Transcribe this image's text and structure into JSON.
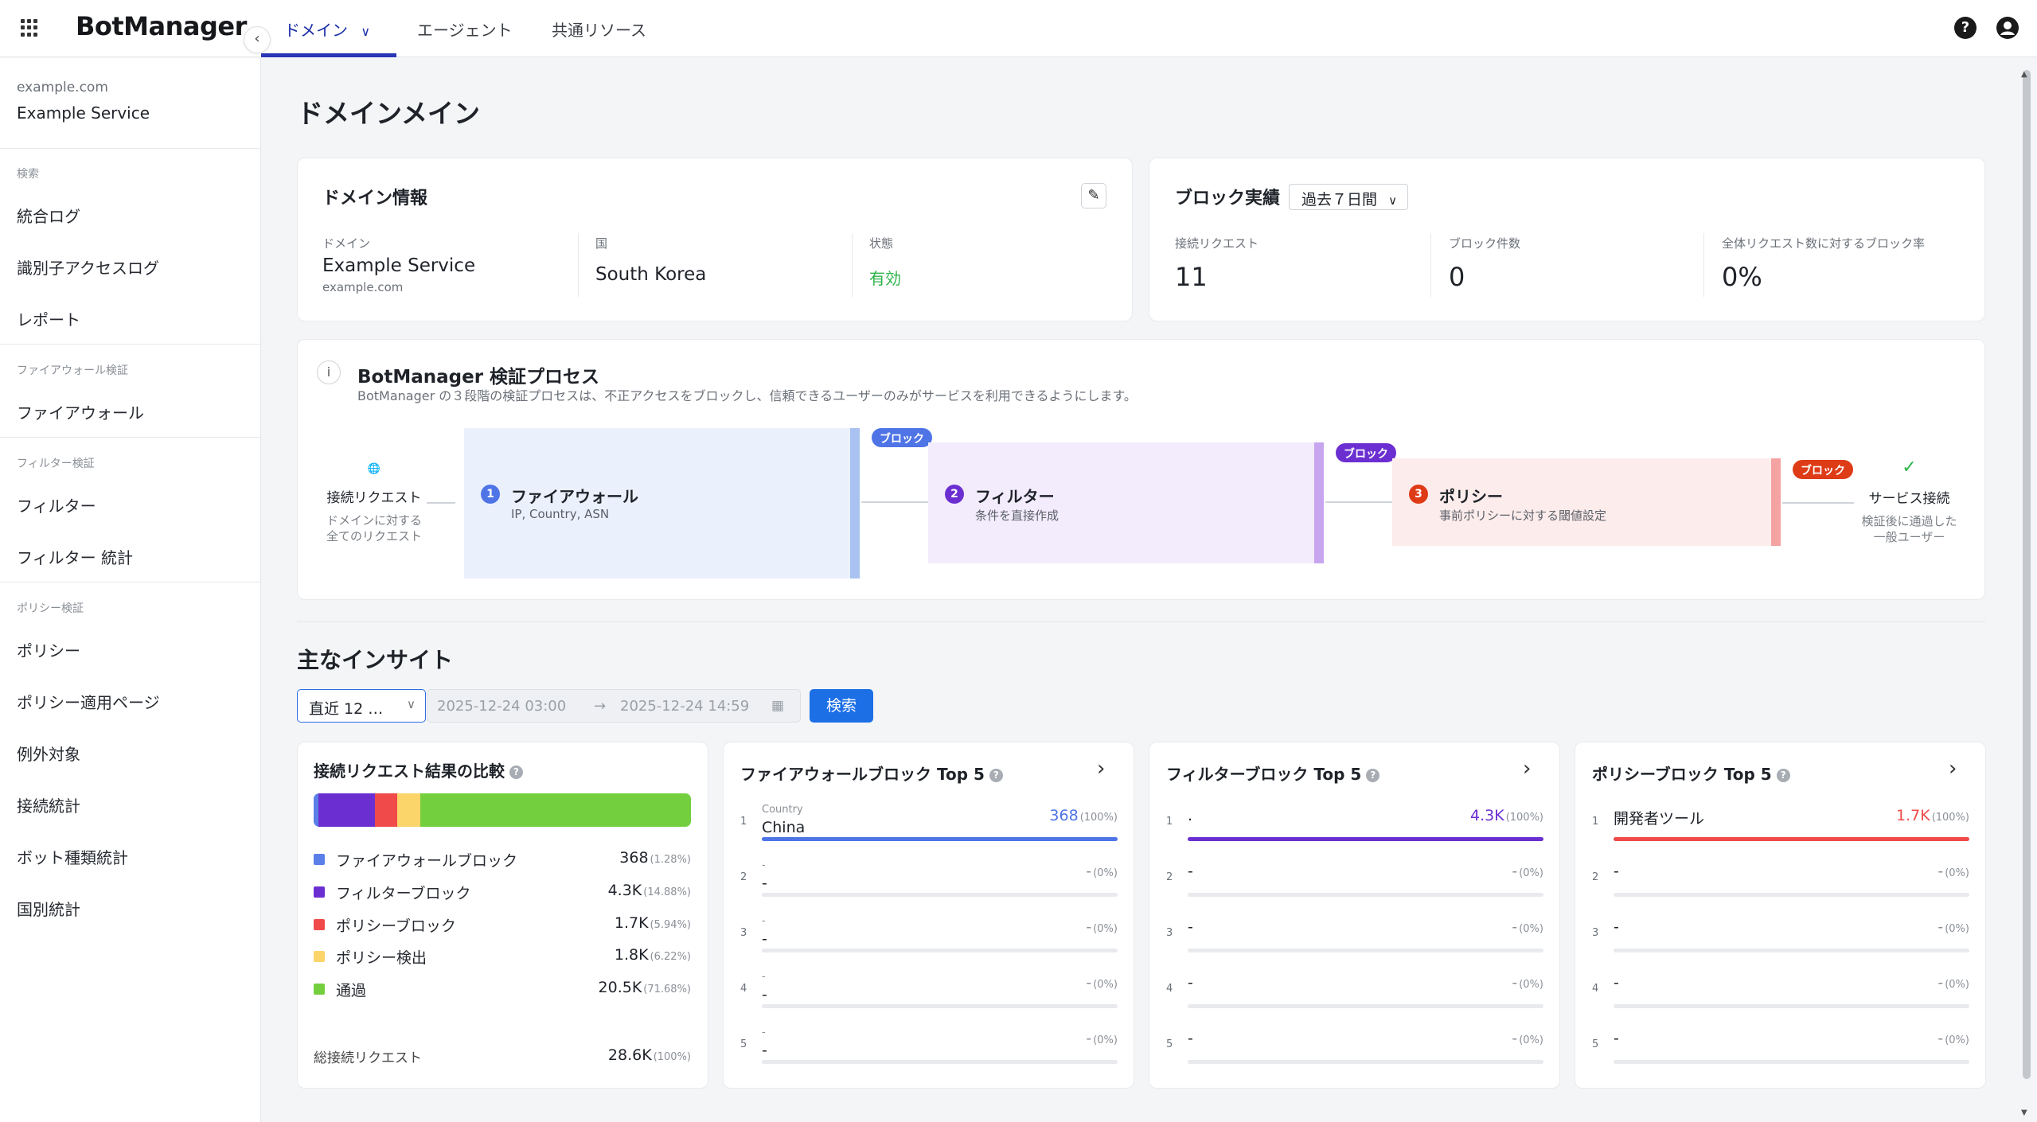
{
  "header": {
    "logo": "BotManager",
    "tabs": [
      "ドメイン",
      "エージェント",
      "共通リソース"
    ]
  },
  "sidebar": {
    "domain": "example.com",
    "service": "Example Service",
    "sections": [
      {
        "title": "検索",
        "items": [
          "統合ログ",
          "識別子アクセスログ",
          "レポート"
        ]
      },
      {
        "title": "ファイアウォール検証",
        "items": [
          "ファイアウォール"
        ]
      },
      {
        "title": "フィルター検証",
        "items": [
          "フィルター",
          "フィルター 統計"
        ]
      },
      {
        "title": "ポリシー検証",
        "items": [
          "ポリシー",
          "ポリシー適用ページ",
          "例外対象",
          "接続統計",
          "ボット種類統計",
          "国別統計"
        ]
      }
    ]
  },
  "page_title": "ドメインメイン",
  "domain_info": {
    "title": "ドメイン情報",
    "domain_label": "ドメイン",
    "domain_value": "Example Service",
    "domain_sub": "example.com",
    "country_label": "国",
    "country_value": "South Korea",
    "status_label": "状態",
    "status_value": "有効"
  },
  "block_results": {
    "title": "ブロック実績",
    "period": "過去７日間",
    "metrics": [
      {
        "label": "接続リクエスト",
        "value": "11"
      },
      {
        "label": "ブロック件数",
        "value": "0"
      },
      {
        "label": "全体リクエスト数に対するブロック率",
        "value": "0%"
      }
    ]
  },
  "process": {
    "title": "BotManager 検証プロセス",
    "description": "BotManager の３段階の検証プロセスは、不正アクセスをブロックし、信頼できるユーザーのみがサービスを利用できるようにします。",
    "start_label": "接続リクエスト",
    "start_sub": [
      "ドメインに対する",
      "全てのリクエスト"
    ],
    "block_tag": "ブロック",
    "stages": [
      {
        "num": "1",
        "name": "ファイアウォール",
        "sub": "IP, Country, ASN"
      },
      {
        "num": "2",
        "name": "フィルター",
        "sub": "条件を直接作成"
      },
      {
        "num": "3",
        "name": "ポリシー",
        "sub": "事前ポリシーに対する閾値設定"
      }
    ],
    "end_label": "サービス接続",
    "end_sub": [
      "検証後に通過した",
      "一般ユーザー"
    ]
  },
  "insights": {
    "title": "主なインサイト",
    "range": "直近 12 …",
    "date_from": "2025-12-24 03:00",
    "date_to": "2025-12-24 14:59",
    "search_label": "検索"
  },
  "compare_card": {
    "title": "接続リクエスト結果の比較",
    "total_label": "総接続リクエスト",
    "total_value": "28.6K",
    "total_pct": "(100%)"
  },
  "chart_data": {
    "type": "bar",
    "title": "接続リクエスト結果の比較",
    "categories": [
      "ファイアウォールブロック",
      "フィルターブロック",
      "ポリシーブロック",
      "ポリシー検出",
      "通過"
    ],
    "display_values": [
      "368",
      "4.3K",
      "1.7K",
      "1.8K",
      "20.5K"
    ],
    "percent": [
      1.28,
      14.88,
      5.94,
      6.22,
      71.68
    ],
    "percent_labels": [
      "(1.28%)",
      "(14.88%)",
      "(5.94%)",
      "(6.22%)",
      "(71.68%)"
    ],
    "colors": [
      "#5b7fe8",
      "#6b2fd1",
      "#f04a4a",
      "#fbd46a",
      "#74cf3f"
    ]
  },
  "top5": [
    {
      "title": "ファイアウォールブロック Top 5",
      "color": "#4e74e6",
      "rows": [
        {
          "rank": "1",
          "caption": "Country",
          "name": "China",
          "value": "368",
          "pct": "(100%)",
          "fill": 1.0
        },
        {
          "rank": "2",
          "caption": "-",
          "name": "-",
          "value": "-",
          "pct": "(0%)",
          "fill": 0
        },
        {
          "rank": "3",
          "caption": "-",
          "name": "-",
          "value": "-",
          "pct": "(0%)",
          "fill": 0
        },
        {
          "rank": "4",
          "caption": "-",
          "name": "-",
          "value": "-",
          "pct": "(0%)",
          "fill": 0
        },
        {
          "rank": "5",
          "caption": "-",
          "name": "-",
          "value": "-",
          "pct": "(0%)",
          "fill": 0
        }
      ]
    },
    {
      "title": "フィルターブロック Top 5",
      "color": "#6b2fd1",
      "rows": [
        {
          "rank": "1",
          "caption": "",
          "name": ".",
          "value": "4.3K",
          "pct": "(100%)",
          "fill": 1.0
        },
        {
          "rank": "2",
          "caption": "",
          "name": "-",
          "value": "-",
          "pct": "(0%)",
          "fill": 0
        },
        {
          "rank": "3",
          "caption": "",
          "name": "-",
          "value": "-",
          "pct": "(0%)",
          "fill": 0
        },
        {
          "rank": "4",
          "caption": "",
          "name": "-",
          "value": "-",
          "pct": "(0%)",
          "fill": 0
        },
        {
          "rank": "5",
          "caption": "",
          "name": "-",
          "value": "-",
          "pct": "(0%)",
          "fill": 0
        }
      ]
    },
    {
      "title": "ポリシーブロック Top 5",
      "color": "#f04a4a",
      "rows": [
        {
          "rank": "1",
          "caption": "",
          "name": "開発者ツール",
          "value": "1.7K",
          "pct": "(100%)",
          "fill": 1.0
        },
        {
          "rank": "2",
          "caption": "",
          "name": "-",
          "value": "-",
          "pct": "(0%)",
          "fill": 0
        },
        {
          "rank": "3",
          "caption": "",
          "name": "-",
          "value": "-",
          "pct": "(0%)",
          "fill": 0
        },
        {
          "rank": "4",
          "caption": "",
          "name": "-",
          "value": "-",
          "pct": "(0%)",
          "fill": 0
        },
        {
          "rank": "5",
          "caption": "",
          "name": "-",
          "value": "-",
          "pct": "(0%)",
          "fill": 0
        }
      ]
    }
  ]
}
